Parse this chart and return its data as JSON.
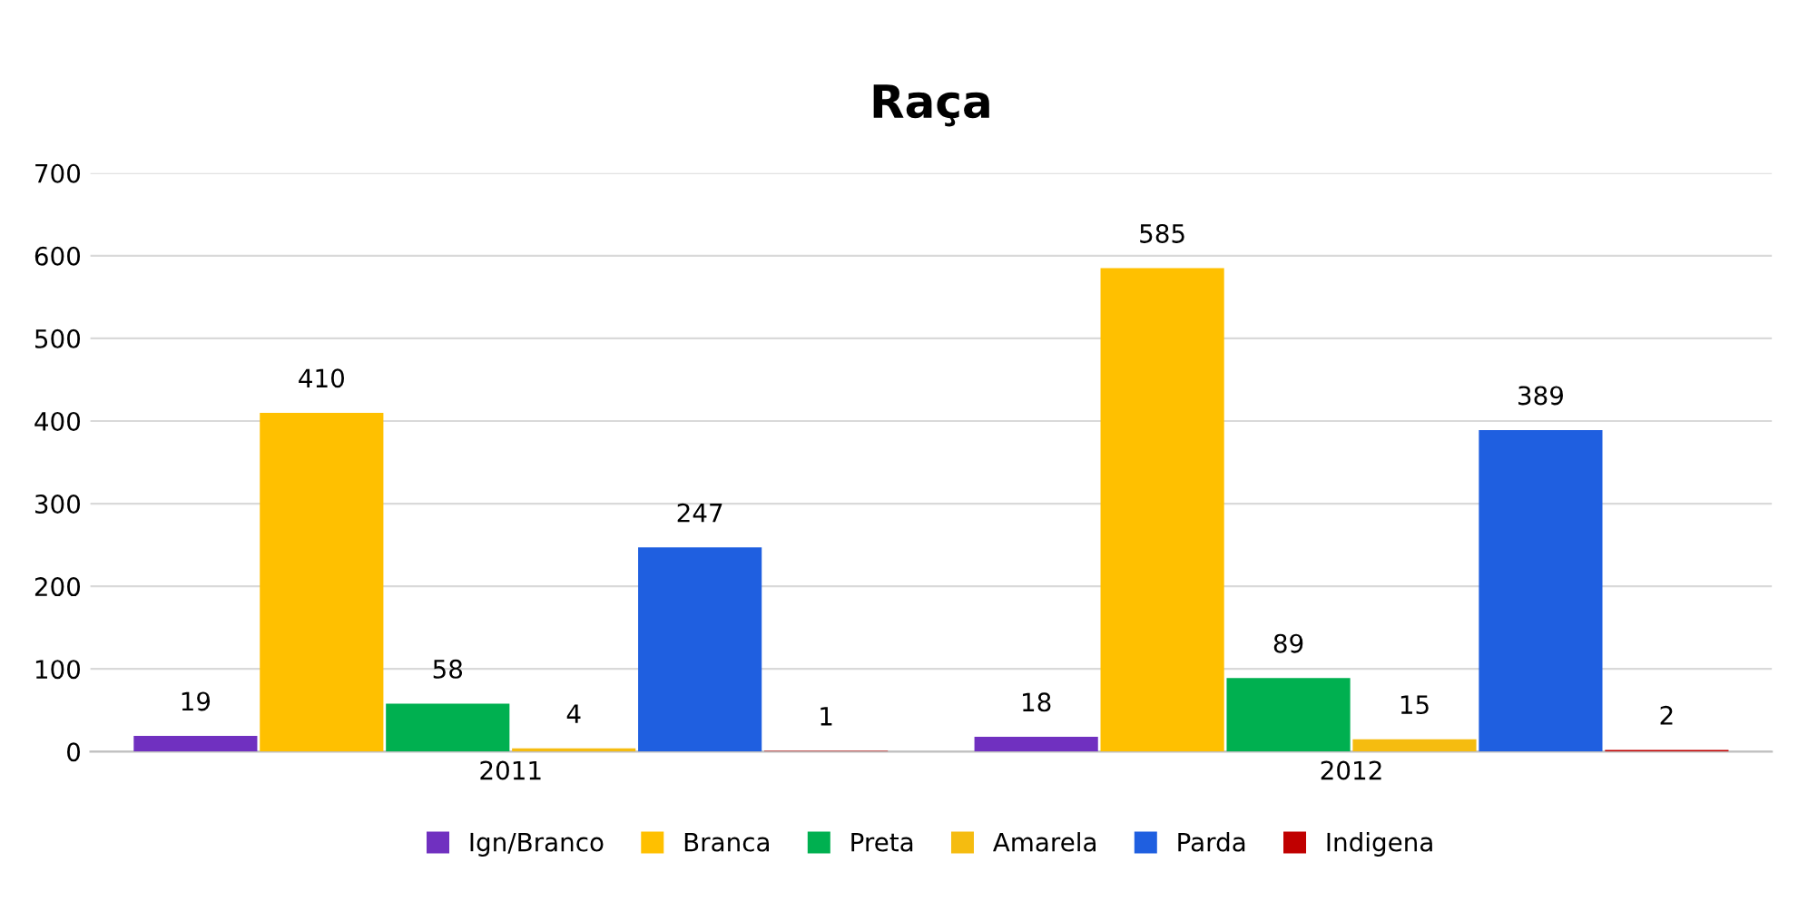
{
  "chart_data": {
    "type": "bar",
    "title": "Raça",
    "categories": [
      "2011",
      "2012"
    ],
    "series": [
      {
        "name": "Ign/Branco",
        "color": "#7030c0",
        "values": [
          19,
          18
        ]
      },
      {
        "name": "Branca",
        "color": "#ffc000",
        "values": [
          410,
          585
        ]
      },
      {
        "name": "Preta",
        "color": "#00b050",
        "values": [
          58,
          89
        ]
      },
      {
        "name": "Amarela",
        "color": "#f5bc10",
        "values": [
          4,
          15
        ]
      },
      {
        "name": "Parda",
        "color": "#1f5fe0",
        "values": [
          247,
          389
        ]
      },
      {
        "name": "Indigena",
        "color": "#c00000",
        "values": [
          1,
          2
        ]
      }
    ],
    "ylim": [
      0,
      700
    ],
    "yticks": [
      0,
      100,
      200,
      300,
      400,
      500,
      600,
      700
    ],
    "grid": "y",
    "legend": "bottom",
    "data_labels": true
  }
}
